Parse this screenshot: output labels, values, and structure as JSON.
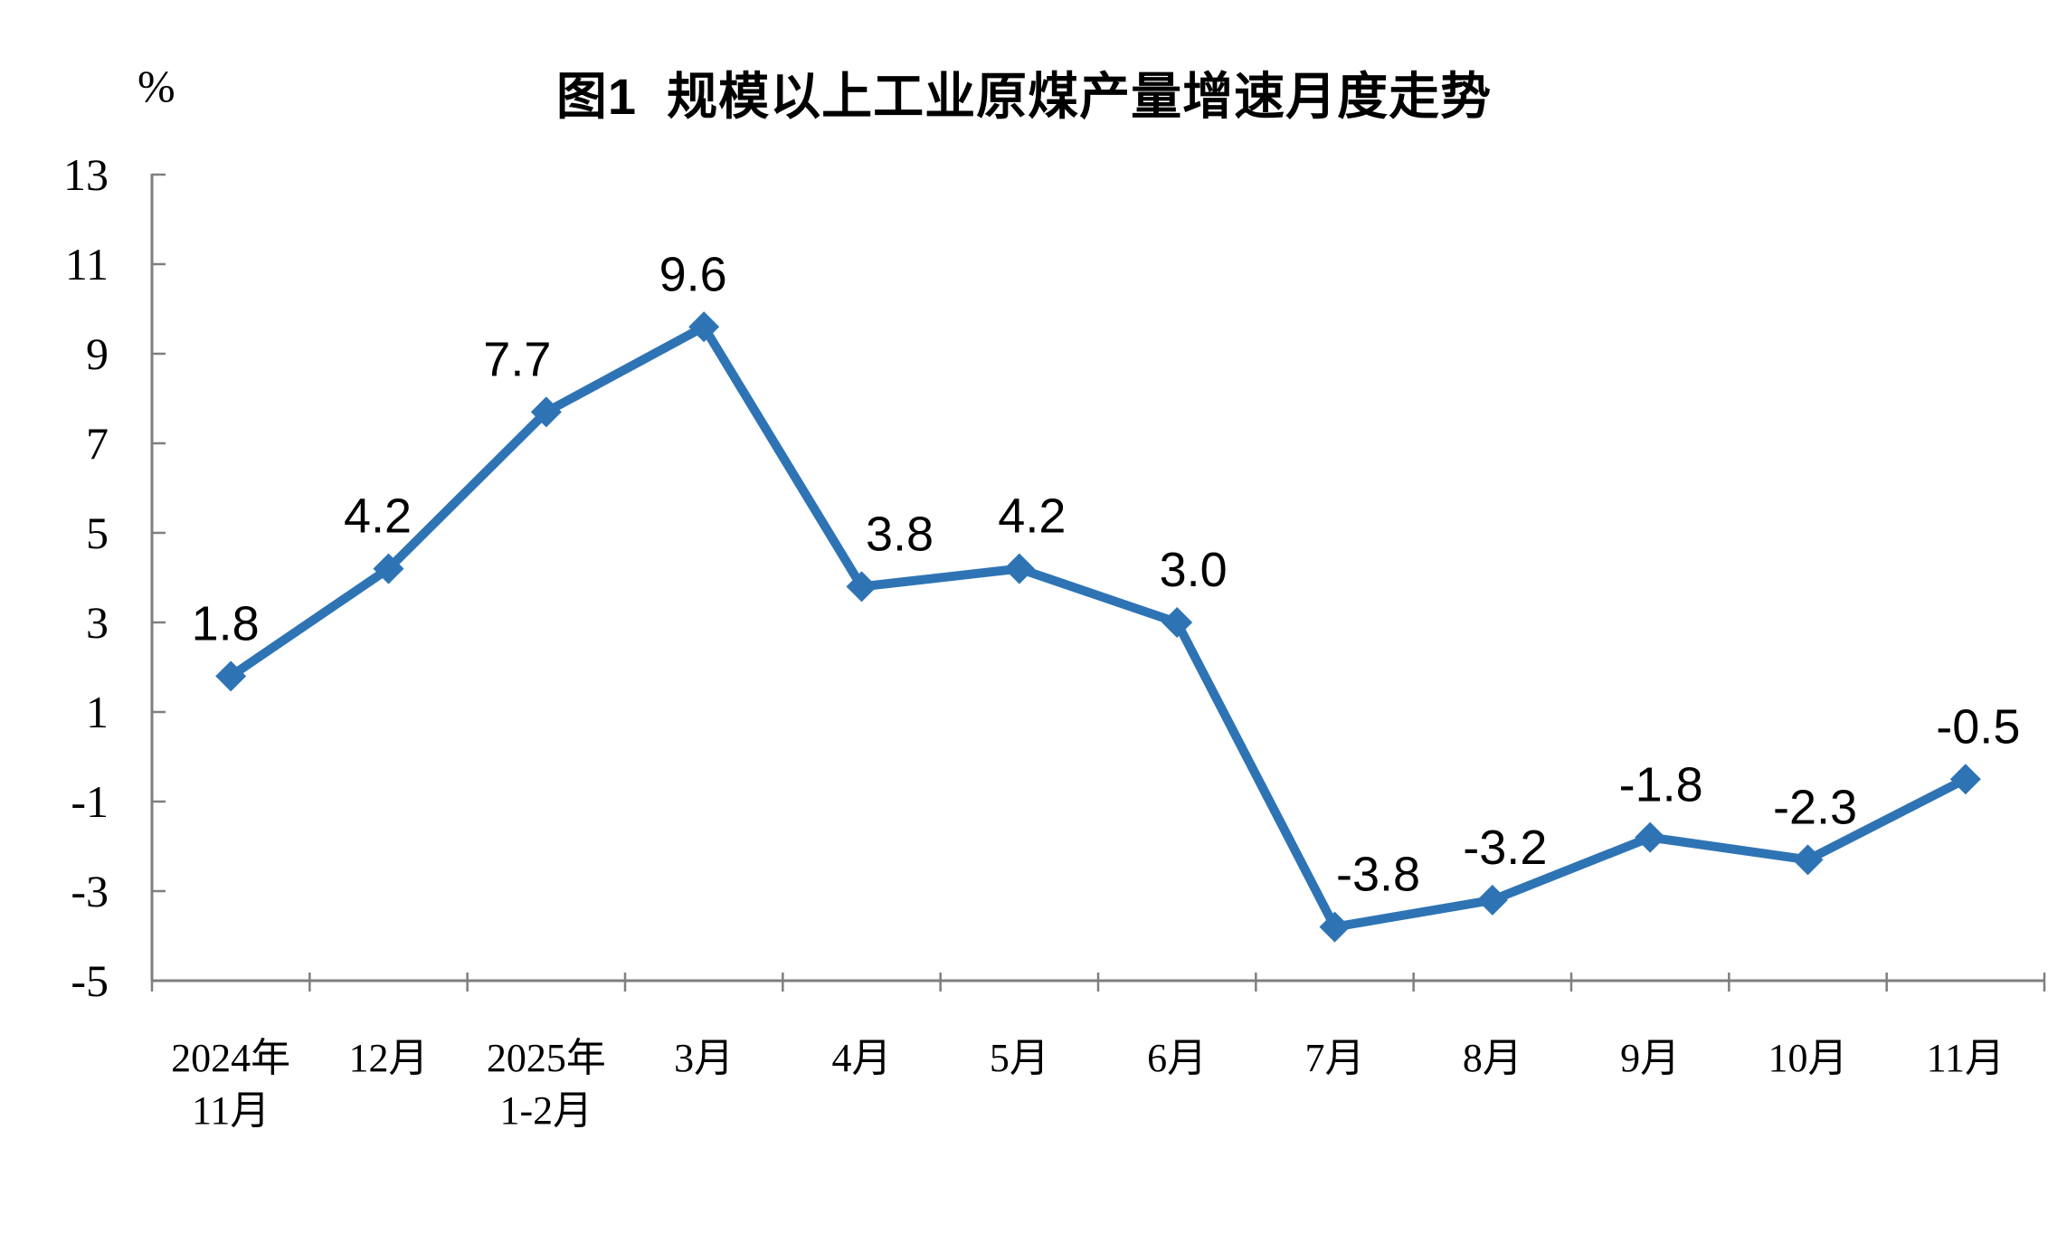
{
  "chart_data": {
    "type": "line",
    "title": "图1  规模以上工业原煤产量增速月度走势",
    "ylabel": "%",
    "categories": [
      "2024年\n11月",
      "12月",
      "2025年\n1-2月",
      "3月",
      "4月",
      "5月",
      "6月",
      "7月",
      "8月",
      "9月",
      "10月",
      "11月"
    ],
    "values": [
      1.8,
      4.2,
      7.7,
      9.6,
      3.8,
      4.2,
      3.0,
      -3.8,
      -3.2,
      -1.8,
      -2.3,
      -0.5
    ],
    "data_labels": [
      "1.8",
      "4.2",
      "7.7",
      "9.6",
      "3.8",
      "4.2",
      "3.0",
      "-3.8",
      "-3.2",
      "-1.8",
      "-2.3",
      "-0.5"
    ],
    "ylim": [
      -5,
      13
    ],
    "ytick_step": 2,
    "yticks": [
      13,
      11,
      9,
      7,
      5,
      3,
      1,
      -1,
      -3,
      -5
    ],
    "grid": false,
    "legend": null,
    "line_color": "#2E74B5",
    "marker": "diamond",
    "axis_color": "#7F7F7F"
  }
}
